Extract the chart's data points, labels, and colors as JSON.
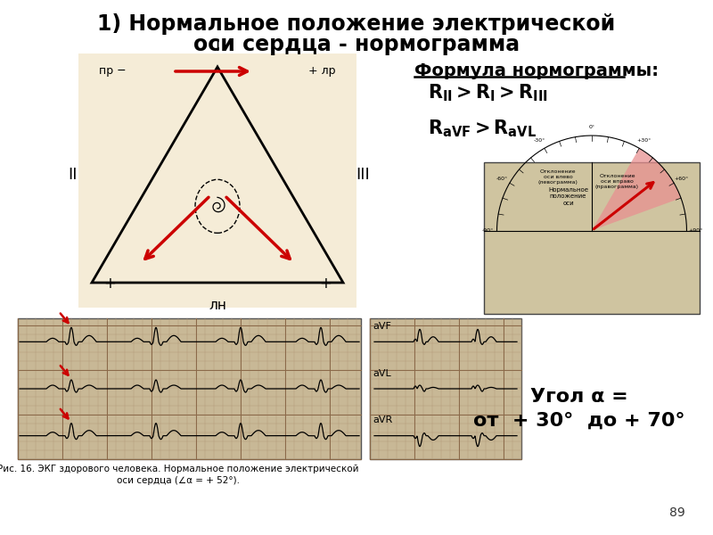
{
  "title_line1": "1) Нормальное положение электрической",
  "title_line2": "оси сердца - нормограмма",
  "title_fontsize": 17,
  "formula_title": "Формула нормограммы:",
  "formula_line1": "$\\mathbf{R_{II} >R_{I} > R_{III}}$",
  "formula_line2": "$\\mathbf{R_{aVF} > R_{aVL}}$",
  "angle_text_line1": "Угол α =",
  "angle_text_line2": "от  + 30°  до + 70°",
  "page_num": "89",
  "bg_color": "#ffffff",
  "triangle_bg": "#f5ecd7",
  "ecg_bg": "#c8b896",
  "diagram_bg": "#d4c9a8",
  "red_color": "#cc0000",
  "caption_line1": "Рис. 16. ЭКГ здорового человека. Нормальное положение электрической",
  "caption_line2": "оси сердца (∠α = + 52°)."
}
